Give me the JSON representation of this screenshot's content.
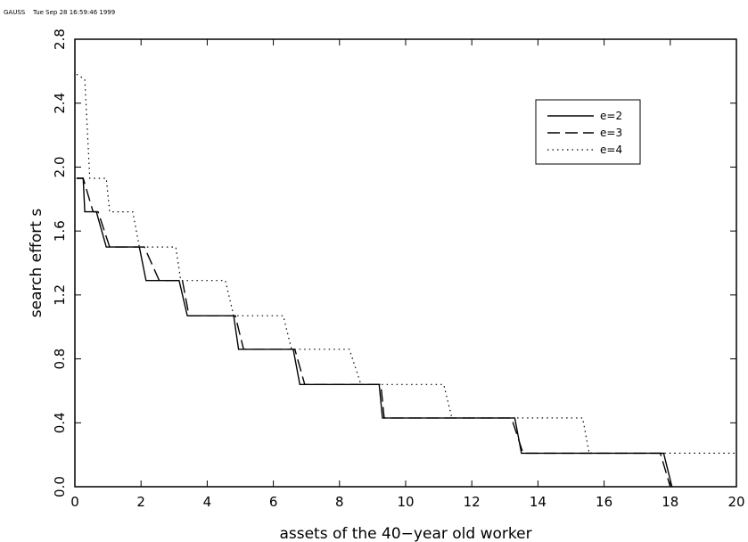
{
  "header": {
    "program": "GAUSS",
    "timestamp": "Tue Sep 28 16:59:46 1999"
  },
  "chart_data": {
    "type": "line",
    "title": "",
    "xlabel": "assets of the 40−year old worker",
    "ylabel": "search effort s",
    "xlim": [
      0,
      20
    ],
    "ylim": [
      0,
      2.8
    ],
    "xticks": [
      "0",
      "2",
      "4",
      "6",
      "8",
      "10",
      "12",
      "14",
      "16",
      "18",
      "20"
    ],
    "yticks": [
      "0.0",
      "0.4",
      "0.8",
      "1.2",
      "1.6",
      "2.0",
      "2.4",
      "2.8"
    ],
    "grid": false,
    "legend_position": "top-right",
    "series": [
      {
        "name": "e=2",
        "style": "solid",
        "points": [
          [
            0.05,
            1.93
          ],
          [
            0.25,
            1.93
          ],
          [
            0.3,
            1.72
          ],
          [
            0.65,
            1.72
          ],
          [
            0.95,
            1.5
          ],
          [
            1.95,
            1.5
          ],
          [
            2.15,
            1.29
          ],
          [
            3.15,
            1.29
          ],
          [
            3.4,
            1.07
          ],
          [
            4.8,
            1.07
          ],
          [
            4.95,
            0.86
          ],
          [
            6.6,
            0.86
          ],
          [
            6.8,
            0.64
          ],
          [
            9.2,
            0.64
          ],
          [
            9.3,
            0.43
          ],
          [
            13.3,
            0.43
          ],
          [
            13.5,
            0.21
          ],
          [
            17.8,
            0.21
          ],
          [
            18.05,
            0.0
          ]
        ]
      },
      {
        "name": "e=3",
        "style": "dashed",
        "points": [
          [
            0.05,
            1.93
          ],
          [
            0.25,
            1.93
          ],
          [
            0.55,
            1.72
          ],
          [
            0.7,
            1.72
          ],
          [
            1.05,
            1.5
          ],
          [
            2.1,
            1.5
          ],
          [
            2.55,
            1.29
          ],
          [
            3.25,
            1.29
          ],
          [
            3.45,
            1.07
          ],
          [
            4.85,
            1.07
          ],
          [
            5.1,
            0.86
          ],
          [
            6.65,
            0.86
          ],
          [
            6.95,
            0.64
          ],
          [
            9.25,
            0.64
          ],
          [
            9.35,
            0.43
          ],
          [
            13.2,
            0.43
          ],
          [
            13.55,
            0.21
          ],
          [
            17.7,
            0.21
          ],
          [
            18.0,
            0.0
          ]
        ]
      },
      {
        "name": "e=4",
        "style": "dotted",
        "points": [
          [
            0.05,
            2.58
          ],
          [
            0.3,
            2.55
          ],
          [
            0.45,
            1.93
          ],
          [
            0.95,
            1.93
          ],
          [
            1.05,
            1.72
          ],
          [
            1.75,
            1.72
          ],
          [
            1.95,
            1.5
          ],
          [
            3.05,
            1.5
          ],
          [
            3.2,
            1.29
          ],
          [
            4.55,
            1.29
          ],
          [
            4.8,
            1.07
          ],
          [
            6.3,
            1.07
          ],
          [
            6.55,
            0.86
          ],
          [
            8.3,
            0.86
          ],
          [
            8.65,
            0.64
          ],
          [
            11.15,
            0.64
          ],
          [
            11.4,
            0.43
          ],
          [
            15.35,
            0.43
          ],
          [
            15.55,
            0.21
          ],
          [
            20.0,
            0.21
          ]
        ]
      }
    ]
  }
}
